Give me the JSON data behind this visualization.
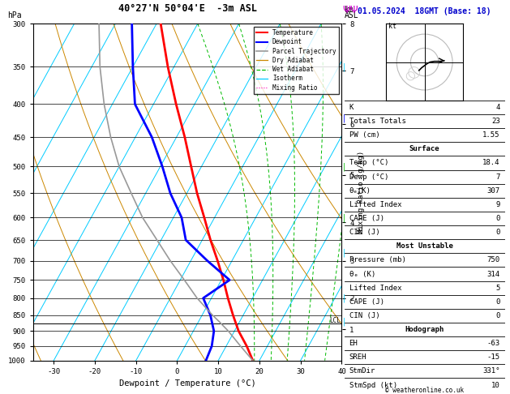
{
  "title_left": "40°27'N 50°04'E  -3m ASL",
  "title_right": "01.05.2024  18GMT (Base: 18)",
  "xlabel": "Dewpoint / Temperature (°C)",
  "pmin": 300,
  "pmax": 1000,
  "tmin": -35,
  "tmax": 40,
  "skew": 45.0,
  "isotherm_color": "#00ccff",
  "dry_adiabat_color": "#cc8800",
  "wet_adiabat_color": "#00bb00",
  "mixing_ratio_color": "#ff00bb",
  "temp_profile_color": "#ff0000",
  "dewp_profile_color": "#0000ff",
  "parcel_color": "#999999",
  "pressure_levels": [
    300,
    350,
    400,
    450,
    500,
    550,
    600,
    650,
    700,
    750,
    800,
    850,
    900,
    950,
    1000
  ],
  "temp_profile_p": [
    1000,
    950,
    900,
    850,
    800,
    750,
    700,
    650,
    600,
    550,
    500,
    450,
    400,
    350,
    300
  ],
  "temp_profile_t": [
    18.4,
    15.0,
    11.0,
    7.5,
    4.0,
    0.5,
    -3.5,
    -8.0,
    -12.5,
    -17.5,
    -22.5,
    -28.0,
    -34.5,
    -41.5,
    -49.0
  ],
  "dewp_profile_p": [
    1000,
    950,
    900,
    850,
    800,
    750,
    700,
    650,
    600,
    550,
    500,
    450,
    400,
    350,
    300
  ],
  "dewp_profile_t": [
    7.0,
    6.5,
    5.0,
    2.0,
    -2.0,
    2.0,
    -6.0,
    -14.0,
    -18.0,
    -24.0,
    -29.5,
    -36.0,
    -44.5,
    -50.0,
    -56.0
  ],
  "parcel_p": [
    1000,
    950,
    900,
    870,
    850,
    800,
    750,
    700,
    650,
    600,
    550,
    500,
    450,
    400,
    350,
    300
  ],
  "parcel_t": [
    18.4,
    13.5,
    8.5,
    5.0,
    2.5,
    -3.5,
    -9.0,
    -15.0,
    -21.0,
    -27.5,
    -33.5,
    -40.0,
    -46.0,
    -52.0,
    -58.0,
    -64.0
  ],
  "mixing_ratio_values": [
    1,
    2,
    3,
    4,
    6,
    8,
    10,
    16,
    20,
    25
  ],
  "km_ticks": [
    1,
    2,
    3,
    4,
    5,
    6,
    7,
    8
  ],
  "km_pressures": [
    895,
    800,
    700,
    610,
    515,
    430,
    355,
    300
  ],
  "lcl_pressure": 875,
  "temp_xticks": [
    -30,
    -20,
    -10,
    0,
    10,
    20,
    30,
    40
  ],
  "info_K": 4,
  "info_TT": 23,
  "info_PW": 1.55,
  "surf_temp": 18.4,
  "surf_dewp": 7,
  "surf_thetae": 307,
  "surf_li": 9,
  "surf_cape": 0,
  "surf_cin": 0,
  "mu_pres": 750,
  "mu_thetae": 314,
  "mu_li": 5,
  "mu_cape": 0,
  "mu_cin": 0,
  "hodo_eh": -63,
  "hodo_sreh": -15,
  "hodo_stmdir": "331°",
  "hodo_stmspd": 10,
  "copyright": "© weatheronline.co.uk"
}
